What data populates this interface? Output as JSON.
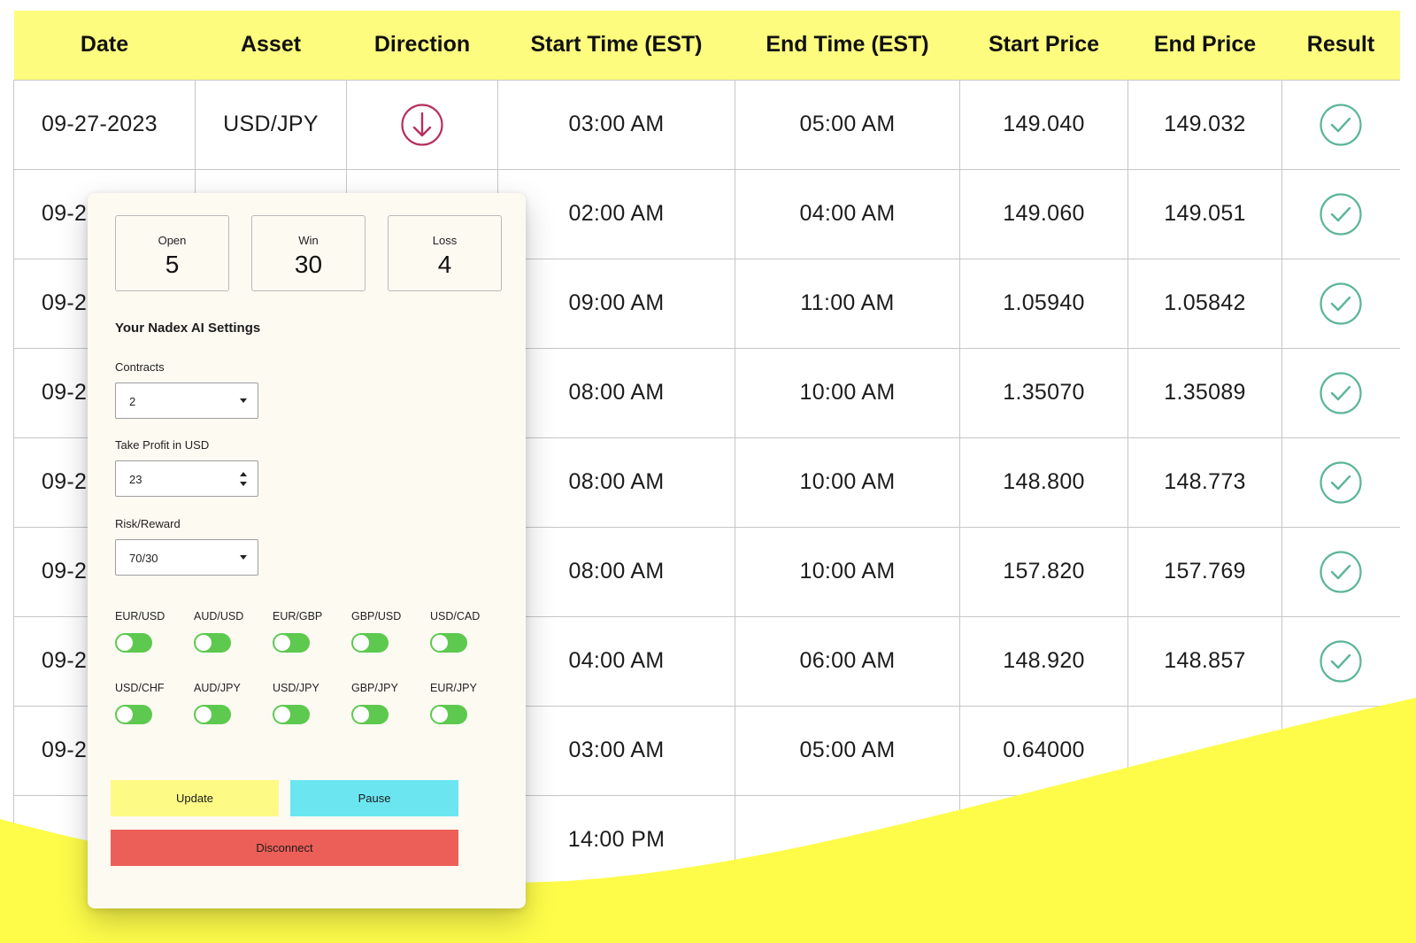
{
  "colors": {
    "header_bg": "#fefc7e",
    "wave_yellow": "#fefc49",
    "down_arrow": "#b5305c",
    "check": "#5cb59a",
    "toggle_on": "#5dc94e",
    "update_btn": "#fefa86",
    "pause_btn": "#6be6f1",
    "disconnect_btn": "#ec5f58"
  },
  "table": {
    "headers": [
      "Date",
      "Asset",
      "Direction",
      "Start Time (EST)",
      "End Time (EST)",
      "Start Price",
      "End Price",
      "Result"
    ],
    "rows": [
      {
        "date": "09-27-2023",
        "asset": "USD/JPY",
        "direction_icon": "arrow-down-circle-icon",
        "start_time": "03:00 AM",
        "end_time": "05:00 AM",
        "start_price": "149.040",
        "end_price": "149.032",
        "result_icon": "check-circle-icon"
      },
      {
        "date": "09-2",
        "asset": "",
        "direction_icon": "arrow-down-circle-icon",
        "start_time": "02:00 AM",
        "end_time": "04:00 AM",
        "start_price": "149.060",
        "end_price": "149.051",
        "result_icon": "check-circle-icon"
      },
      {
        "date": "09-2",
        "asset": "",
        "direction_icon": "",
        "start_time": "09:00 AM",
        "end_time": "11:00 AM",
        "start_price": "1.05940",
        "end_price": "1.05842",
        "result_icon": "check-circle-icon"
      },
      {
        "date": "09-2",
        "asset": "",
        "direction_icon": "",
        "start_time": "08:00 AM",
        "end_time": "10:00 AM",
        "start_price": "1.35070",
        "end_price": "1.35089",
        "result_icon": "check-circle-icon"
      },
      {
        "date": "09-2",
        "asset": "",
        "direction_icon": "",
        "start_time": "08:00 AM",
        "end_time": "10:00 AM",
        "start_price": "148.800",
        "end_price": "148.773",
        "result_icon": "check-circle-icon"
      },
      {
        "date": "09-2",
        "asset": "",
        "direction_icon": "",
        "start_time": "08:00 AM",
        "end_time": "10:00 AM",
        "start_price": "157.820",
        "end_price": "157.769",
        "result_icon": "check-circle-icon"
      },
      {
        "date": "09-2",
        "asset": "",
        "direction_icon": "",
        "start_time": "04:00 AM",
        "end_time": "06:00 AM",
        "start_price": "148.920",
        "end_price": "148.857",
        "result_icon": "check-circle-icon"
      },
      {
        "date": "09-2",
        "asset": "",
        "direction_icon": "",
        "start_time": "03:00 AM",
        "end_time": "05:00 AM",
        "start_price": "0.64000",
        "end_price": "",
        "result_icon": ""
      },
      {
        "date": "",
        "asset": "",
        "direction_icon": "",
        "start_time": "14:00 PM",
        "end_time": "",
        "start_price": "",
        "end_price": "",
        "result_icon": ""
      }
    ]
  },
  "panel": {
    "stats": {
      "open": {
        "label": "Open",
        "value": "5"
      },
      "win": {
        "label": "Win",
        "value": "30"
      },
      "loss": {
        "label": "Loss",
        "value": "4"
      }
    },
    "title": "Your Nadex AI Settings",
    "contracts": {
      "label": "Contracts",
      "value": "2"
    },
    "take_profit": {
      "label": "Take Profit in USD",
      "value": "23"
    },
    "risk_reward": {
      "label": "Risk/Reward",
      "value": "70/30"
    },
    "pairs": [
      {
        "label": "EUR/USD",
        "on": true
      },
      {
        "label": "AUD/USD",
        "on": true
      },
      {
        "label": "EUR/GBP",
        "on": true
      },
      {
        "label": "GBP/USD",
        "on": true
      },
      {
        "label": "USD/CAD",
        "on": true
      },
      {
        "label": "USD/CHF",
        "on": true
      },
      {
        "label": "AUD/JPY",
        "on": true
      },
      {
        "label": "USD/JPY",
        "on": true
      },
      {
        "label": "GBP/JPY",
        "on": true
      },
      {
        "label": "EUR/JPY",
        "on": true
      }
    ],
    "buttons": {
      "update": "Update",
      "pause": "Pause",
      "disconnect": "Disconnect"
    }
  }
}
